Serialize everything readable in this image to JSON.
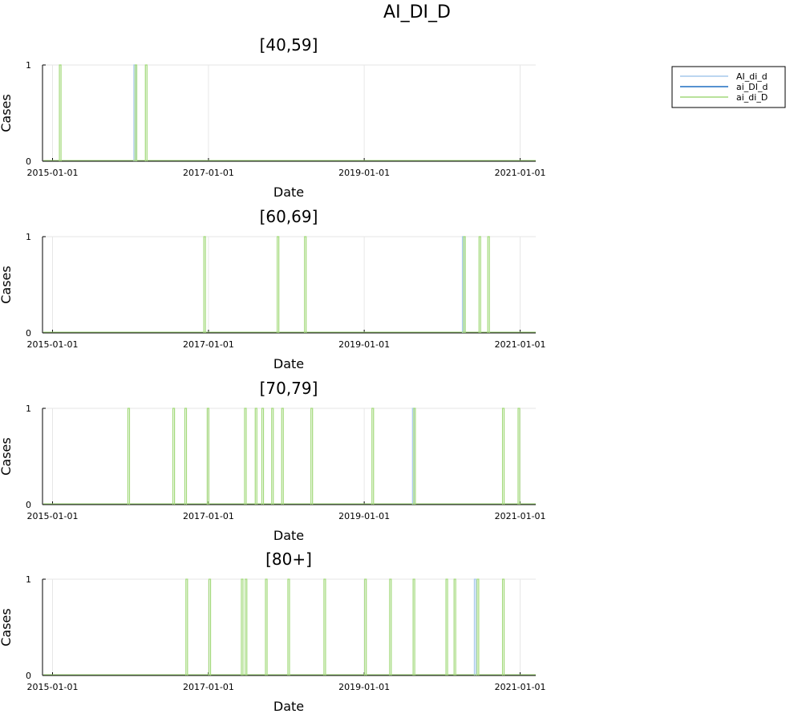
{
  "title": "AI_DI_D",
  "legend": {
    "entries": [
      {
        "name": "AI_di_d",
        "color": "#a6c8ec"
      },
      {
        "name": "ai_DI_d",
        "color": "#1f6fc0"
      },
      {
        "name": "ai_di_D",
        "color": "#a2d97a"
      }
    ]
  },
  "chart_data": [
    {
      "type": "line",
      "title": "[40,59]",
      "xlabel": "Date",
      "ylabel": "Cases",
      "x_ticks": [
        "2015-01-01",
        "2017-01-01",
        "2019-01-01",
        "2021-01-01"
      ],
      "y_ticks": [
        "0",
        "1"
      ],
      "xlim": [
        "2014-11-15",
        "2021-03-15"
      ],
      "ylim": [
        0,
        1
      ],
      "grid": true,
      "series": [
        {
          "name": "AI_di_d",
          "spikes": [
            "2016-01-21"
          ]
        },
        {
          "name": "ai_DI_d",
          "spikes": []
        },
        {
          "name": "ai_di_D",
          "spikes": [
            "2015-02-06",
            "2016-01-27",
            "2016-03-15"
          ]
        }
      ]
    },
    {
      "type": "line",
      "title": "[60,69]",
      "xlabel": "Date",
      "ylabel": "Cases",
      "x_ticks": [
        "2015-01-01",
        "2017-01-01",
        "2019-01-01",
        "2021-01-01"
      ],
      "y_ticks": [
        "0",
        "1"
      ],
      "xlim": [
        "2014-11-15",
        "2021-03-15"
      ],
      "ylim": [
        0,
        1
      ],
      "grid": true,
      "series": [
        {
          "name": "AI_di_d",
          "spikes": [
            "2020-04-09"
          ]
        },
        {
          "name": "ai_DI_d",
          "spikes": []
        },
        {
          "name": "ai_di_D",
          "spikes": [
            "2016-12-14",
            "2017-11-23",
            "2018-03-31",
            "2020-04-15",
            "2020-06-26",
            "2020-08-06"
          ]
        }
      ]
    },
    {
      "type": "line",
      "title": "[70,79]",
      "xlabel": "Date",
      "ylabel": "Cases",
      "x_ticks": [
        "2015-01-01",
        "2017-01-01",
        "2019-01-01",
        "2021-01-01"
      ],
      "y_ticks": [
        "0",
        "1"
      ],
      "xlim": [
        "2014-11-15",
        "2021-03-15"
      ],
      "ylim": [
        0,
        1
      ],
      "grid": true,
      "series": [
        {
          "name": "AI_di_d",
          "spikes": [
            "2019-08-19"
          ]
        },
        {
          "name": "ai_DI_d",
          "spikes": []
        },
        {
          "name": "ai_di_D",
          "spikes": [
            "2015-12-24",
            "2016-07-22",
            "2016-09-16",
            "2016-12-30",
            "2017-06-23",
            "2017-08-12",
            "2017-09-12",
            "2017-10-28",
            "2017-12-14",
            "2018-04-30",
            "2019-02-10",
            "2019-08-25",
            "2020-10-14",
            "2020-12-26"
          ]
        }
      ]
    },
    {
      "type": "line",
      "title": "[80+]",
      "xlabel": "Date",
      "ylabel": "Cases",
      "x_ticks": [
        "2015-01-01",
        "2017-01-01",
        "2019-01-01",
        "2021-01-01"
      ],
      "y_ticks": [
        "0",
        "1"
      ],
      "xlim": [
        "2014-11-15",
        "2021-03-15"
      ],
      "ylim": [
        0,
        1
      ],
      "grid": true,
      "series": [
        {
          "name": "AI_di_d",
          "spikes": [
            "2020-06-04"
          ]
        },
        {
          "name": "ai_DI_d",
          "spikes": []
        },
        {
          "name": "ai_di_D",
          "spikes": [
            "2016-09-21",
            "2017-01-07",
            "2017-06-08",
            "2017-06-26",
            "2017-09-29",
            "2018-01-12",
            "2018-06-30",
            "2019-01-07",
            "2019-05-04",
            "2019-08-22",
            "2020-01-23",
            "2020-03-01",
            "2020-06-17",
            "2020-10-14"
          ]
        }
      ]
    }
  ]
}
